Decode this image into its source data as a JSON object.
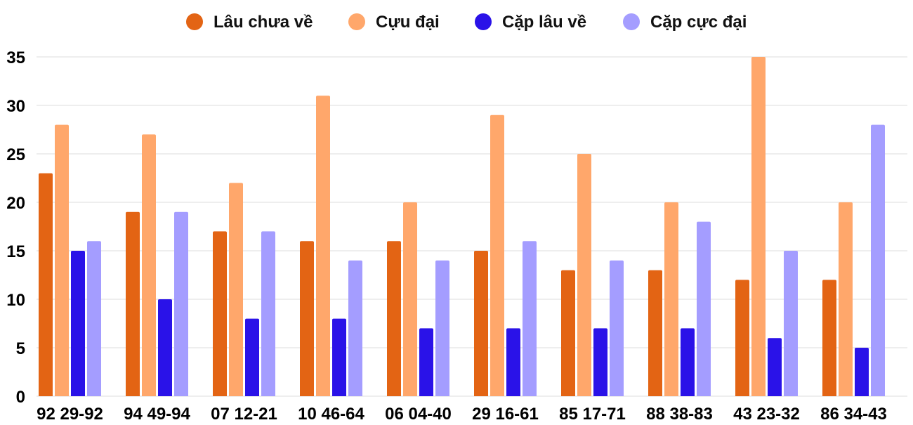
{
  "chart_data": {
    "type": "bar",
    "title": "",
    "xlabel": "",
    "ylabel": "",
    "ylim": [
      0,
      35
    ],
    "yticks": [
      0,
      5,
      10,
      15,
      20,
      25,
      30,
      35
    ],
    "grid": true,
    "legend_position": "top-center",
    "categories": [
      "92 29-92",
      "94 49-94",
      "07 12-21",
      "10 46-64",
      "06 04-40",
      "29 16-61",
      "85 17-71",
      "88 38-83",
      "43 23-32",
      "86 34-43"
    ],
    "series": [
      {
        "name": "Lâu chưa về",
        "color": "#E36414",
        "values": [
          23,
          19,
          17,
          16,
          16,
          15,
          13,
          13,
          12,
          12
        ]
      },
      {
        "name": "Cựu đại",
        "color": "#FFA76B",
        "values": [
          28,
          27,
          22,
          31,
          20,
          29,
          25,
          20,
          35,
          20
        ]
      },
      {
        "name": "Cặp lâu về",
        "color": "#2A12E8",
        "values": [
          15,
          10,
          8,
          8,
          7,
          7,
          7,
          7,
          6,
          5
        ]
      },
      {
        "name": "Cặp cực đại",
        "color": "#A49DFF",
        "values": [
          16,
          19,
          17,
          14,
          14,
          16,
          14,
          18,
          15,
          28
        ]
      }
    ]
  }
}
